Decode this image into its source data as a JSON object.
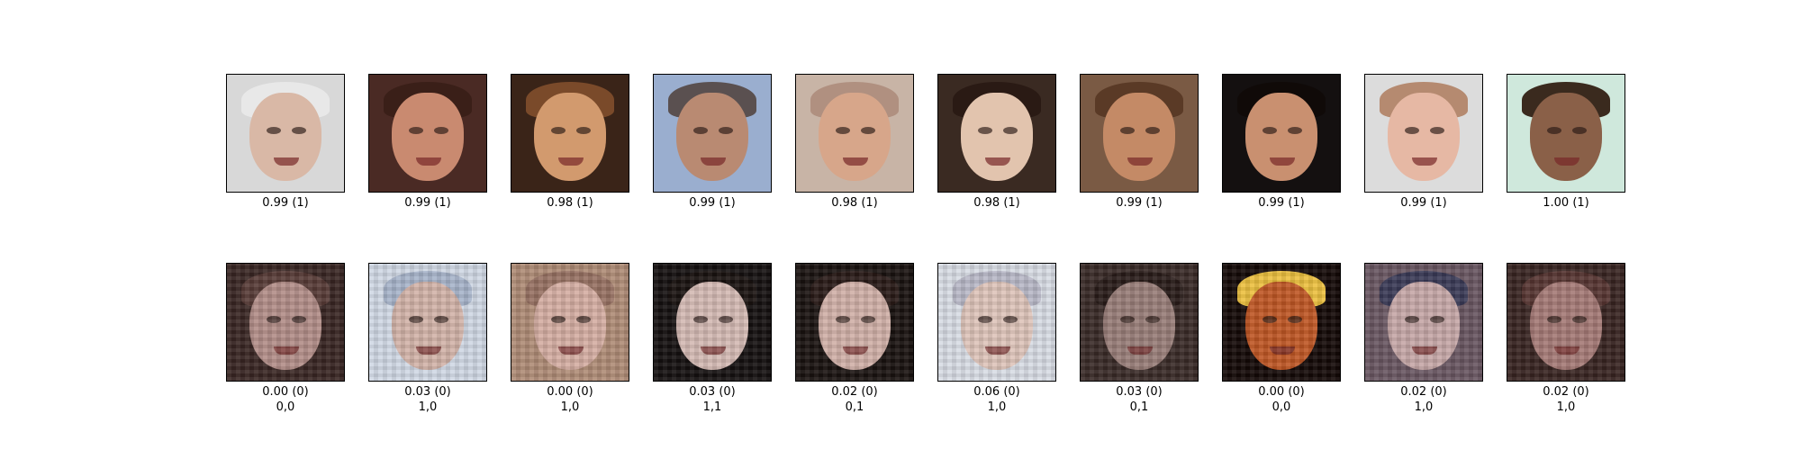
{
  "real_row": {
    "items": [
      {
        "score": "0.99 (1)",
        "bg": "#d8d8d8",
        "skin": "#d9b8a6",
        "hair": "#e8e8e8"
      },
      {
        "score": "0.99 (1)",
        "bg": "#4a2a24",
        "skin": "#c98a70",
        "hair": "#3a1f18"
      },
      {
        "score": "0.98 (1)",
        "bg": "#3a2418",
        "skin": "#d29a6e",
        "hair": "#7a4a2a"
      },
      {
        "score": "0.99 (1)",
        "bg": "#9aaecf",
        "skin": "#b98a72",
        "hair": "#5a5050"
      },
      {
        "score": "0.98 (1)",
        "bg": "#c8b4a6",
        "skin": "#d7a68a",
        "hair": "#b09080"
      },
      {
        "score": "0.98 (1)",
        "bg": "#3a2a22",
        "skin": "#e2c4ae",
        "hair": "#2a1a14"
      },
      {
        "score": "0.99 (1)",
        "bg": "#7a5a44",
        "skin": "#c48a66",
        "hair": "#5a3a26"
      },
      {
        "score": "0.99 (1)",
        "bg": "#141010",
        "skin": "#c99070",
        "hair": "#100a08"
      },
      {
        "score": "0.99 (1)",
        "bg": "#dcdcdc",
        "skin": "#e6b8a4",
        "hair": "#b58a70"
      },
      {
        "score": "1.00 (1)",
        "bg": "#cfe8dc",
        "skin": "#8a6048",
        "hair": "#3a2a1e"
      }
    ]
  },
  "fake_row": {
    "items": [
      {
        "score": "0.00 (0)",
        "pred": "0,0",
        "bg": "#3a2622",
        "skin": "#b58c86",
        "hair": "#5a3a36"
      },
      {
        "score": "0.03 (0)",
        "pred": "1,0",
        "bg": "#cfd8e6",
        "skin": "#d6b2a6",
        "hair": "#a6b4cc"
      },
      {
        "score": "0.00 (0)",
        "pred": "1,0",
        "bg": "#b28a72",
        "skin": "#d8aca0",
        "hair": "#9a7060"
      },
      {
        "score": "0.03 (0)",
        "pred": "1,1",
        "bg": "#141010",
        "skin": "#d6b8b2",
        "hair": "#1a1210"
      },
      {
        "score": "0.02 (0)",
        "pred": "0,1",
        "bg": "#1a1210",
        "skin": "#d4aea6",
        "hair": "#2a1a16"
      },
      {
        "score": "0.06 (0)",
        "pred": "1,0",
        "bg": "#d8dce6",
        "skin": "#e0c4b8",
        "hair": "#b8b8c8"
      },
      {
        "score": "0.03 (0)",
        "pred": "0,1",
        "bg": "#3a2a26",
        "skin": "#9a7c76",
        "hair": "#2a1c18"
      },
      {
        "score": "0.00 (0)",
        "pred": "0,0",
        "bg": "#140806",
        "skin": "#c8541c",
        "hair": "#f0c030"
      },
      {
        "score": "0.02 (0)",
        "pred": "1,0",
        "bg": "#6a5662",
        "skin": "#c8a6a6",
        "hair": "#3a3a5a"
      },
      {
        "score": "0.02 (0)",
        "pred": "1,0",
        "bg": "#3a2420",
        "skin": "#a87874",
        "hair": "#5a3430"
      }
    ]
  }
}
